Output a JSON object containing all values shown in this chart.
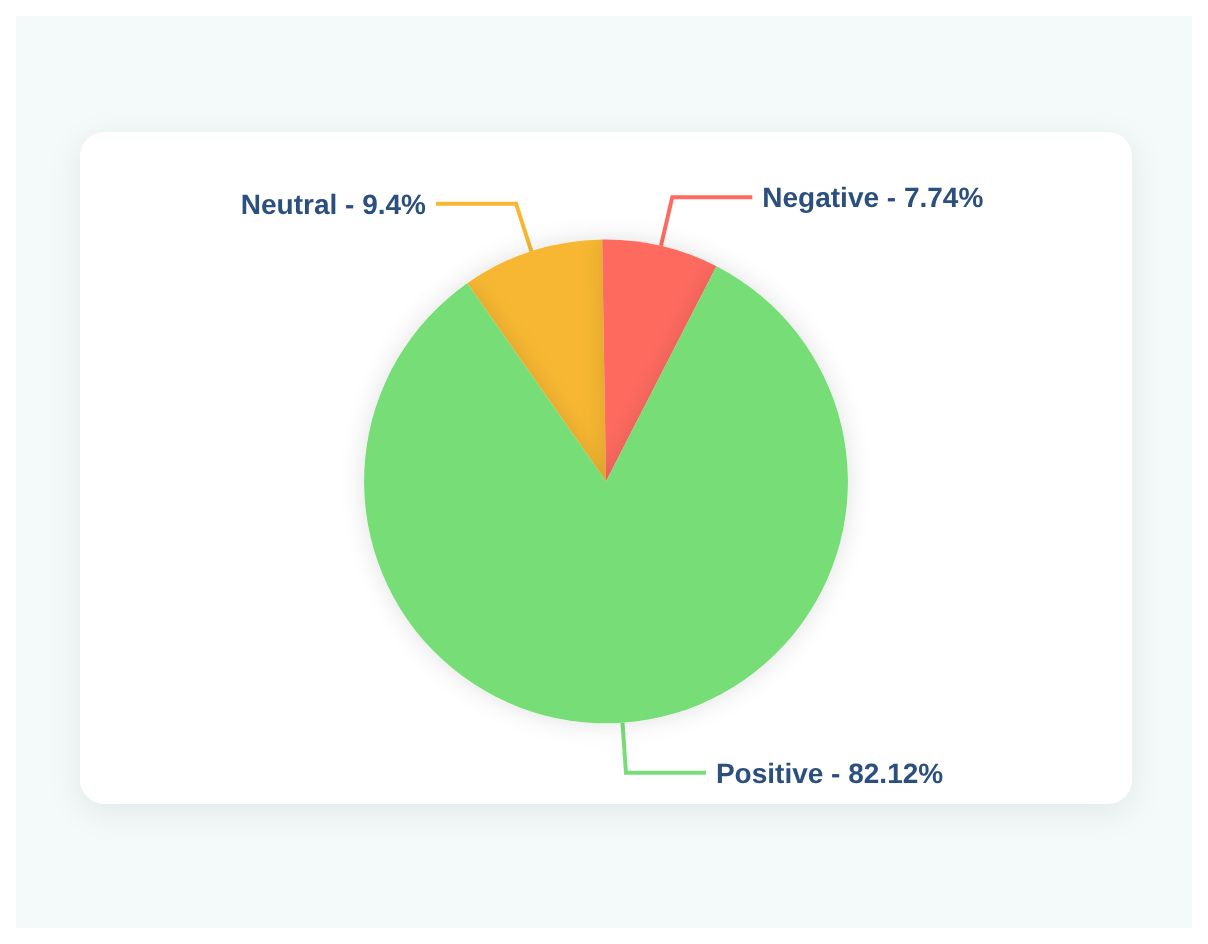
{
  "chart_data": {
    "type": "pie",
    "categories": [
      "Neutral",
      "Negative",
      "Positive"
    ],
    "values": [
      9.4,
      7.74,
      82.12
    ],
    "value_labels": [
      "9.4%",
      "7.74%",
      "82.12%"
    ],
    "colors": [
      "#f7b733",
      "#ff6b5e",
      "#77dd77"
    ],
    "legend": false
  }
}
